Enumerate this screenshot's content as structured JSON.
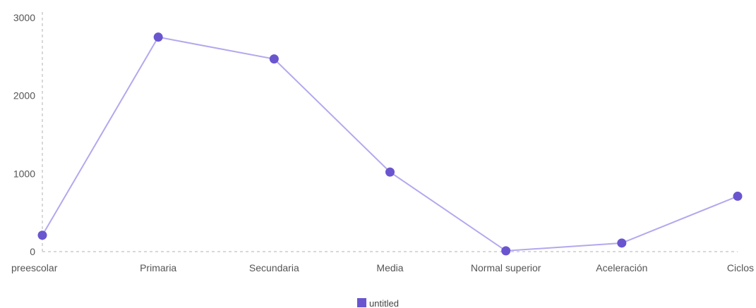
{
  "chart_data": {
    "type": "line",
    "categories": [
      "preescolar",
      "Primaria",
      "Secundaria",
      "Media",
      "Normal superior",
      "Aceleración",
      "Ciclos"
    ],
    "series": [
      {
        "name": "untitled",
        "values": [
          210,
          2750,
          2470,
          1020,
          10,
          110,
          710
        ]
      }
    ],
    "yticks": [
      0,
      1000,
      2000,
      3000
    ],
    "ylim": [
      0,
      3000
    ],
    "grid": false,
    "legend_position": "bottom-center",
    "colors": {
      "line": "#b3a8ee",
      "marker": "#6a55cf",
      "legend_swatch": "#6a55cf",
      "axis_dash": "#cccccc",
      "text": "#555555"
    }
  }
}
